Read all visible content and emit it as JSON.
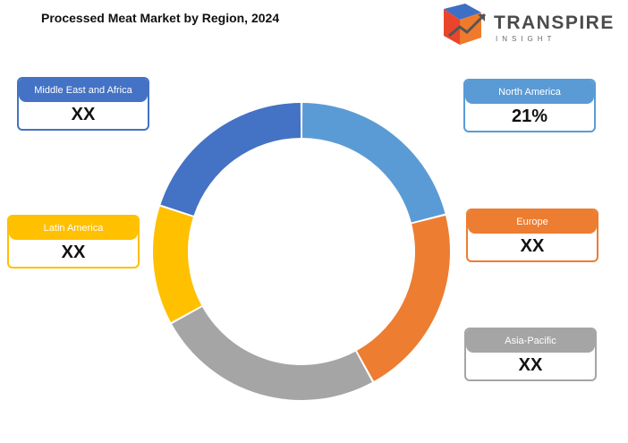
{
  "chart_data": {
    "type": "pie",
    "title": "Processed Meat Market by Region, 2024",
    "categories": [
      "North America",
      "Europe",
      "Asia-Pacific",
      "Latin America",
      "Middle East and Africa"
    ],
    "values": [
      21,
      21,
      25,
      13,
      20
    ],
    "value_labels": [
      "21%",
      "XX",
      "XX",
      "XX",
      "XX"
    ],
    "colors": [
      "#5B9BD5",
      "#ED7D31",
      "#A5A5A5",
      "#FFC000",
      "#4472C4"
    ],
    "legend": "callouts"
  },
  "logo": {
    "word": "TRANSPIRE",
    "sub": "INSIGHT",
    "name": "transpire-insight-logo"
  }
}
